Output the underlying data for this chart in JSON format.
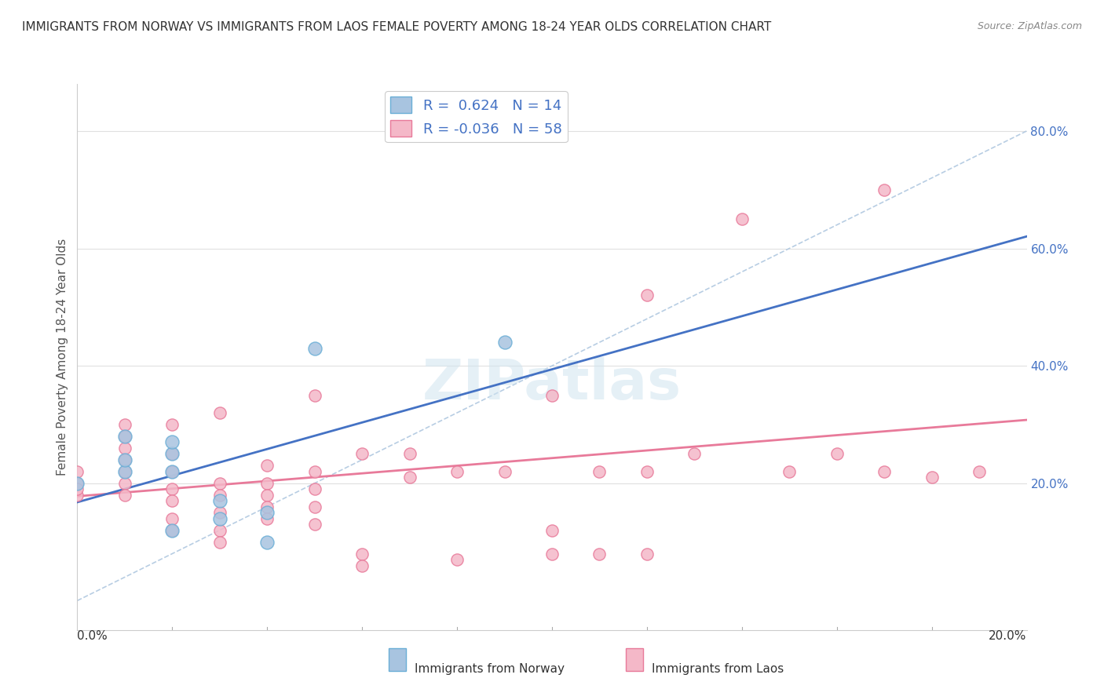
{
  "title": "IMMIGRANTS FROM NORWAY VS IMMIGRANTS FROM LAOS FEMALE POVERTY AMONG 18-24 YEAR OLDS CORRELATION CHART",
  "source": "Source: ZipAtlas.com",
  "ylabel": "Female Poverty Among 18-24 Year Olds",
  "ylabel_right_ticks": [
    0.2,
    0.4,
    0.6,
    0.8
  ],
  "ylabel_right_labels": [
    "20.0%",
    "40.0%",
    "60.0%",
    "80.0%"
  ],
  "xlim": [
    0.0,
    0.2
  ],
  "ylim": [
    -0.05,
    0.88
  ],
  "norway_R": 0.624,
  "norway_N": 14,
  "laos_R": -0.036,
  "laos_N": 58,
  "norway_color": "#a8c4e0",
  "norway_edge": "#6aaed6",
  "laos_color": "#f4b8c8",
  "laos_edge": "#e87a9a",
  "norway_line_color": "#4472c4",
  "laos_line_color": "#e87a9a",
  "diag_line_color": "#b0c8e0",
  "legend_text_color": "#4472c4",
  "norway_scatter_x": [
    0.0,
    0.01,
    0.01,
    0.01,
    0.02,
    0.02,
    0.02,
    0.02,
    0.03,
    0.03,
    0.04,
    0.04,
    0.05,
    0.09
  ],
  "norway_scatter_y": [
    0.2,
    0.22,
    0.24,
    0.28,
    0.25,
    0.27,
    0.22,
    0.12,
    0.14,
    0.17,
    0.15,
    0.1,
    0.43,
    0.44
  ],
  "laos_scatter_x": [
    0.0,
    0.0,
    0.0,
    0.0,
    0.01,
    0.01,
    0.01,
    0.01,
    0.01,
    0.01,
    0.01,
    0.02,
    0.02,
    0.02,
    0.02,
    0.02,
    0.02,
    0.02,
    0.03,
    0.03,
    0.03,
    0.03,
    0.03,
    0.03,
    0.04,
    0.04,
    0.04,
    0.04,
    0.04,
    0.05,
    0.05,
    0.05,
    0.05,
    0.05,
    0.06,
    0.06,
    0.06,
    0.07,
    0.07,
    0.08,
    0.08,
    0.09,
    0.1,
    0.1,
    0.1,
    0.11,
    0.11,
    0.12,
    0.12,
    0.12,
    0.13,
    0.14,
    0.15,
    0.16,
    0.17,
    0.17,
    0.18,
    0.19
  ],
  "laos_scatter_y": [
    0.2,
    0.22,
    0.18,
    0.19,
    0.24,
    0.26,
    0.28,
    0.22,
    0.3,
    0.2,
    0.18,
    0.3,
    0.25,
    0.22,
    0.19,
    0.17,
    0.14,
    0.12,
    0.32,
    0.2,
    0.18,
    0.15,
    0.12,
    0.1,
    0.23,
    0.2,
    0.18,
    0.16,
    0.14,
    0.35,
    0.22,
    0.19,
    0.16,
    0.13,
    0.25,
    0.08,
    0.06,
    0.25,
    0.21,
    0.22,
    0.07,
    0.22,
    0.12,
    0.35,
    0.08,
    0.22,
    0.08,
    0.52,
    0.22,
    0.08,
    0.25,
    0.65,
    0.22,
    0.25,
    0.7,
    0.22,
    0.21,
    0.22
  ],
  "grid_color": "#e0e0e0",
  "watermark_text": "ZIPatlas",
  "background_color": "#ffffff"
}
